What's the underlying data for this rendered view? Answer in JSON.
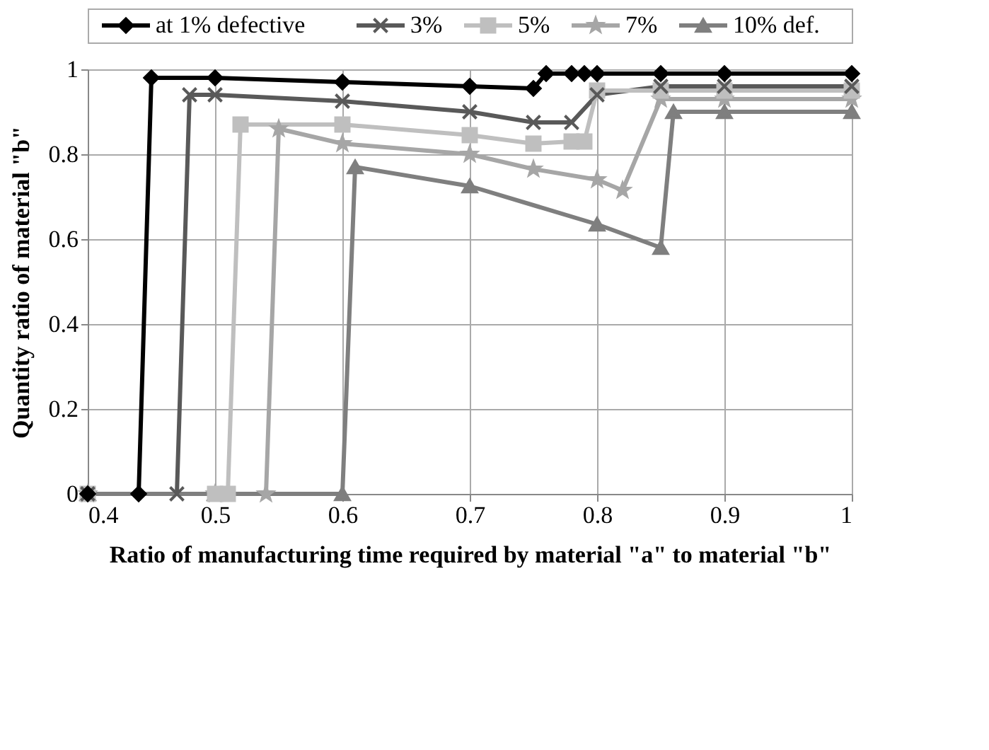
{
  "chart_data": {
    "type": "line",
    "xlabel": "Ratio of manufacturing time  required by material \"a\" to material \"b\"",
    "ylabel": "Quantity ratio of material \"b\"",
    "xlim": [
      0.4,
      1
    ],
    "xticks": [
      0.4,
      0.5,
      0.6,
      0.7,
      0.8,
      0.9,
      1
    ],
    "ylim": [
      0,
      1
    ],
    "yticks": [
      0,
      0.2,
      0.4,
      0.6,
      0.8,
      1
    ],
    "grid": true,
    "legend": "top",
    "series": [
      {
        "name": "at 1% defective",
        "color": "#000000",
        "marker": "diamond",
        "x": [
          0.4,
          0.44,
          0.45,
          0.5,
          0.6,
          0.7,
          0.75,
          0.76,
          0.78,
          0.79,
          0.8,
          0.85,
          0.9,
          1
        ],
        "values": [
          0,
          0,
          0.98,
          0.98,
          0.97,
          0.96,
          0.955,
          0.99,
          0.99,
          0.99,
          0.99,
          0.99,
          0.99,
          0.99
        ]
      },
      {
        "name": "3%",
        "color": "#595959",
        "marker": "cross",
        "x": [
          0.4,
          0.47,
          0.48,
          0.5,
          0.6,
          0.7,
          0.75,
          0.78,
          0.8,
          0.85,
          0.9,
          1
        ],
        "values": [
          0,
          0,
          0.94,
          0.94,
          0.925,
          0.9,
          0.875,
          0.875,
          0.94,
          0.96,
          0.96,
          0.96
        ]
      },
      {
        "name": "5%",
        "color": "#bfbfbf",
        "marker": "square",
        "x": [
          0.4,
          0.5,
          0.51,
          0.52,
          0.6,
          0.7,
          0.75,
          0.78,
          0.79,
          0.8,
          0.85,
          0.9,
          1
        ],
        "values": [
          0,
          0,
          0,
          0.87,
          0.87,
          0.845,
          0.825,
          0.83,
          0.83,
          0.95,
          0.95,
          0.95,
          0.95
        ]
      },
      {
        "name": "7%",
        "color": "#a6a6a6",
        "marker": "star",
        "x": [
          0.4,
          0.5,
          0.54,
          0.55,
          0.6,
          0.7,
          0.75,
          0.8,
          0.82,
          0.85,
          0.9,
          1
        ],
        "values": [
          0,
          0,
          0,
          0.86,
          0.825,
          0.8,
          0.765,
          0.74,
          0.715,
          0.93,
          0.93,
          0.93
        ]
      },
      {
        "name": "10% def.",
        "color": "#7f7f7f",
        "marker": "triangle",
        "x": [
          0.4,
          0.5,
          0.6,
          0.61,
          0.7,
          0.8,
          0.85,
          0.86,
          0.9,
          1
        ],
        "values": [
          0,
          0,
          0,
          0.77,
          0.725,
          0.635,
          0.58,
          0.9,
          0.9,
          0.9
        ]
      }
    ]
  }
}
